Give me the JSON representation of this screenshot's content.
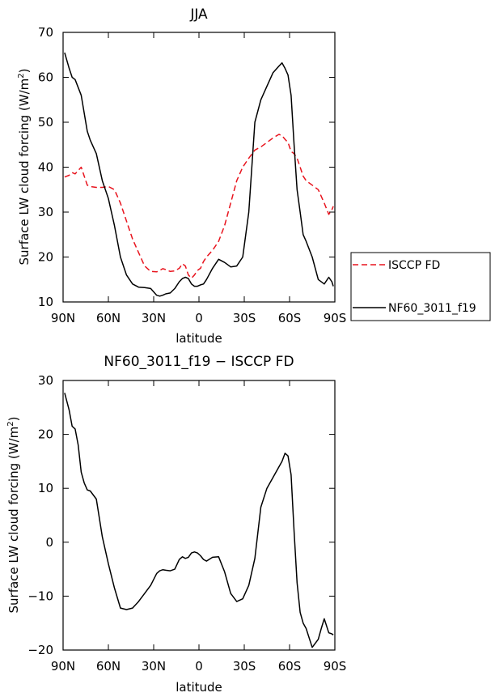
{
  "chart_data": [
    {
      "type": "line",
      "title": "JJA",
      "xlabel": "latitude",
      "ylabel": "Surface LW cloud forcing (W/m²)",
      "ylabel_main": "Surface LW cloud forcing (W/m",
      "ylabel_sup": "2",
      "ylabel_close": ")",
      "xlim": [
        90,
        -90
      ],
      "ylim": [
        10,
        70
      ],
      "xticks": [
        90,
        60,
        30,
        0,
        -30,
        -60,
        -90
      ],
      "xticklabels": [
        "90N",
        "60N",
        "30N",
        "0",
        "30S",
        "60S",
        "90S"
      ],
      "yticks": [
        10,
        20,
        30,
        40,
        50,
        60,
        70
      ],
      "yticklabels": [
        "10",
        "20",
        "30",
        "40",
        "50",
        "60",
        "70"
      ],
      "legend_position": "right",
      "series": [
        {
          "name": "ISCCP FD",
          "color": "#e8141e",
          "dash": "dashed",
          "x": [
            89,
            86,
            84,
            82,
            78,
            74,
            72,
            68,
            64,
            60,
            56,
            52,
            48,
            44,
            40,
            36,
            32,
            28,
            26,
            24,
            22,
            19,
            16,
            13,
            11,
            9,
            7,
            5,
            3,
            1,
            -1,
            -3,
            -5,
            -9,
            -13,
            -17,
            -21,
            -25,
            -29,
            -33,
            -37,
            -41,
            -45,
            -49,
            -53,
            -55,
            -57,
            -59,
            -61,
            -63,
            -65,
            -67,
            -69,
            -71,
            -75,
            -79,
            -83,
            -86,
            -88,
            -89
          ],
          "y": [
            37.8,
            38.2,
            38.8,
            38.5,
            40.0,
            36.0,
            35.7,
            35.5,
            35.5,
            35.7,
            35.0,
            32.0,
            28.0,
            24.0,
            21.0,
            18.0,
            16.8,
            16.7,
            17.0,
            17.4,
            17.2,
            16.8,
            16.9,
            17.5,
            18.5,
            18.0,
            16.0,
            15.3,
            16.0,
            17.0,
            17.5,
            19.0,
            20.0,
            21.5,
            23.5,
            27.0,
            32.0,
            37.0,
            40.0,
            42.0,
            43.8,
            44.5,
            45.5,
            46.5,
            47.3,
            47.0,
            46.2,
            45.5,
            43.5,
            43.0,
            42.0,
            40.0,
            38.0,
            37.0,
            36.0,
            35.0,
            32.0,
            29.5,
            30.5,
            31.3
          ]
        },
        {
          "name": "NF60_3011_f19",
          "color": "#000000",
          "dash": "solid",
          "x": [
            89,
            86,
            84,
            82,
            78,
            74,
            72,
            68,
            64,
            60,
            56,
            52,
            48,
            44,
            40,
            36,
            32,
            28,
            26,
            24,
            22,
            19,
            16,
            13,
            11,
            9,
            7,
            5,
            3,
            1,
            -1,
            -3,
            -5,
            -9,
            -13,
            -17,
            -21,
            -25,
            -29,
            -33,
            -37,
            -41,
            -45,
            -49,
            -53,
            -55,
            -57,
            -59,
            -61,
            -63,
            -65,
            -67,
            -69,
            -71,
            -75,
            -79,
            -83,
            -86,
            -88,
            -89
          ],
          "y": [
            65.5,
            62.0,
            60.0,
            59.5,
            56.0,
            48.0,
            46.0,
            43.0,
            37.0,
            33.0,
            27.0,
            20.0,
            16.0,
            14.0,
            13.3,
            13.2,
            13.0,
            11.5,
            11.3,
            11.5,
            11.8,
            12.0,
            13.0,
            14.5,
            15.2,
            15.5,
            15.2,
            14.0,
            13.5,
            13.5,
            13.8,
            14.0,
            15.0,
            17.5,
            19.5,
            18.8,
            17.8,
            18.0,
            20.0,
            30.0,
            50.0,
            55.0,
            58.0,
            61.0,
            62.5,
            63.2,
            62.0,
            60.5,
            56.0,
            45.0,
            35.0,
            30.0,
            25.0,
            23.5,
            20.0,
            15.0,
            14.0,
            15.5,
            14.5,
            13.5
          ]
        }
      ]
    },
    {
      "type": "line",
      "title": "NF60_3011_f19 − ISCCP FD",
      "xlabel": "latitude",
      "ylabel": "Surface LW cloud forcing (W/m²)",
      "ylabel_main": "Surface LW cloud forcing (W/m",
      "ylabel_sup": "2",
      "ylabel_close": ")",
      "xlim": [
        90,
        -90
      ],
      "ylim": [
        -20,
        30
      ],
      "xticks": [
        90,
        60,
        30,
        0,
        -30,
        -60,
        -90
      ],
      "xticklabels": [
        "90N",
        "60N",
        "30N",
        "0",
        "30S",
        "60S",
        "90S"
      ],
      "yticks": [
        -20,
        -10,
        0,
        10,
        20,
        30
      ],
      "yticklabels": [
        "−20",
        "−10",
        "0",
        "10",
        "20",
        "30"
      ],
      "series": [
        {
          "name": "",
          "color": "#000000",
          "dash": "solid",
          "x": [
            89,
            86,
            84,
            82,
            80,
            78,
            76,
            74,
            72,
            68,
            64,
            60,
            56,
            52,
            48,
            44,
            40,
            36,
            32,
            28,
            26,
            24,
            22,
            19,
            16,
            13,
            11,
            9,
            7,
            5,
            3,
            1,
            -1,
            -3,
            -5,
            -9,
            -13,
            -17,
            -21,
            -25,
            -29,
            -33,
            -37,
            -41,
            -45,
            -49,
            -53,
            -55,
            -57,
            -59,
            -61,
            -63,
            -65,
            -67,
            -69,
            -71,
            -75,
            -79,
            -81,
            -83,
            -86,
            -88,
            -89
          ],
          "y": [
            27.7,
            24.5,
            21.5,
            21.0,
            18.0,
            13.0,
            11.0,
            9.7,
            9.5,
            8.0,
            1.0,
            -4.0,
            -8.5,
            -12.2,
            -12.5,
            -12.2,
            -11.0,
            -9.5,
            -8.0,
            -5.8,
            -5.3,
            -5.1,
            -5.2,
            -5.3,
            -5.0,
            -3.2,
            -2.7,
            -3.0,
            -2.8,
            -2.0,
            -1.8,
            -2.0,
            -2.5,
            -3.2,
            -3.5,
            -2.8,
            -2.7,
            -5.5,
            -9.5,
            -11.0,
            -10.5,
            -8.0,
            -3.0,
            6.5,
            10.0,
            12.0,
            14.0,
            15.0,
            16.5,
            16.0,
            12.5,
            2.0,
            -7.5,
            -13.0,
            -15.0,
            -16.0,
            -19.5,
            -18.0,
            -16.0,
            -14.2,
            -16.8,
            -17.0,
            -17.2
          ]
        }
      ]
    }
  ]
}
